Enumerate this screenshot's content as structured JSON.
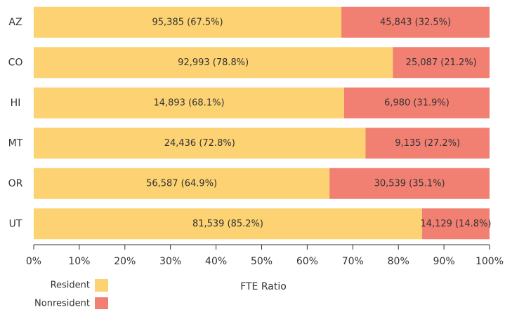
{
  "chart_data": {
    "type": "stacked_bar_horizontal",
    "categories": [
      "AZ",
      "CO",
      "HI",
      "MT",
      "OR",
      "UT"
    ],
    "series": [
      {
        "name": "Resident",
        "color": "#fcd272",
        "values": [
          67.5,
          78.8,
          68.1,
          72.8,
          64.9,
          85.2
        ],
        "value_labels": [
          "95,385 (67.5%)",
          "92,993 (78.8%)",
          "14,893 (68.1%)",
          "24,436 (72.8%)",
          "56,587 (64.9%)",
          "81,539 (85.2%)"
        ]
      },
      {
        "name": "Nonresident",
        "color": "#f17f72",
        "values": [
          32.5,
          21.2,
          31.9,
          27.2,
          35.1,
          14.8
        ],
        "value_labels": [
          "45,843 (32.5%)",
          "25,087 (21.2%)",
          "6,980 (31.9%)",
          "9,135 (27.2%)",
          "30,539 (35.1%)",
          "14,129 (14.8%)"
        ]
      }
    ],
    "xlabel": "FTE Ratio",
    "xlim": [
      0,
      100
    ],
    "xticks": [
      {
        "value": 0,
        "label": "0%"
      },
      {
        "value": 10,
        "label": "10%"
      },
      {
        "value": 20,
        "label": "20%"
      },
      {
        "value": 30,
        "label": "30%"
      },
      {
        "value": 40,
        "label": "40%"
      },
      {
        "value": 50,
        "label": "50%"
      },
      {
        "value": 60,
        "label": "60%"
      },
      {
        "value": 70,
        "label": "70%"
      },
      {
        "value": 80,
        "label": "80%"
      },
      {
        "value": 90,
        "label": "90%"
      },
      {
        "value": 100,
        "label": "100%"
      }
    ],
    "legend": "bottom-left"
  }
}
